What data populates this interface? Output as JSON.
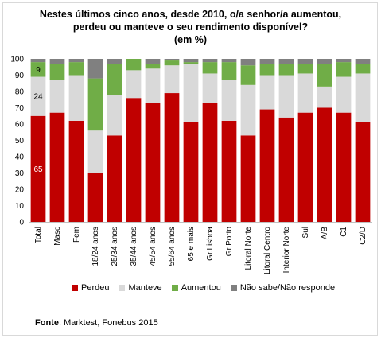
{
  "title": {
    "line1": "Nestes últimos cinco anos, desde 2010, o/a senhor/a aumentou,",
    "line2": "perdeu ou manteve o seu rendimento disponível?",
    "line3": "(em %)"
  },
  "source": {
    "label": "Fonte",
    "text": ": Marktest, Fonebus 2015"
  },
  "chart_data": {
    "type": "bar",
    "stacked": true,
    "ylim": [
      0,
      100
    ],
    "yticks": [
      0,
      10,
      20,
      30,
      40,
      50,
      60,
      70,
      80,
      90,
      100
    ],
    "grid": false,
    "legend_position": "bottom",
    "categories": [
      "Total",
      "Masc",
      "Fem",
      "18/24 anos",
      "25/34 anos",
      "35/44 anos",
      "45/54 anos",
      "55/64 anos",
      "65 e mais",
      "Gr.Lisboa",
      "Gr.Porto",
      "Litoral Norte",
      "Litoral Centro",
      "Interior Norte",
      "Sul",
      "A/B",
      "C1",
      "C2/D"
    ],
    "series": [
      {
        "name": "Perdeu",
        "color": "#c00000",
        "values": [
          65,
          67,
          62,
          30,
          53,
          76,
          73,
          79,
          61,
          73,
          62,
          53,
          69,
          64,
          67,
          70,
          67,
          61
        ]
      },
      {
        "name": "Manteve",
        "color": "#d9d9d9",
        "values": [
          24,
          20,
          28,
          26,
          25,
          17,
          21,
          17,
          36,
          18,
          25,
          31,
          21,
          26,
          24,
          13,
          22,
          30
        ]
      },
      {
        "name": "Aumentou",
        "color": "#70ad47",
        "values": [
          9,
          10,
          8,
          32,
          19,
          7,
          3,
          3,
          1,
          7,
          11,
          12,
          7,
          7,
          6,
          14,
          9,
          6
        ]
      },
      {
        "name": "Não sabe/Não responde",
        "color": "#808080",
        "values": [
          2,
          3,
          2,
          12,
          3,
          0,
          3,
          1,
          2,
          2,
          2,
          4,
          3,
          3,
          3,
          3,
          2,
          3
        ]
      }
    ],
    "data_labels": [
      {
        "category": "Total",
        "series": "Perdeu",
        "text": "65"
      },
      {
        "category": "Total",
        "series": "Manteve",
        "text": "24"
      },
      {
        "category": "Total",
        "series": "Aumentou",
        "text": "9"
      }
    ]
  }
}
